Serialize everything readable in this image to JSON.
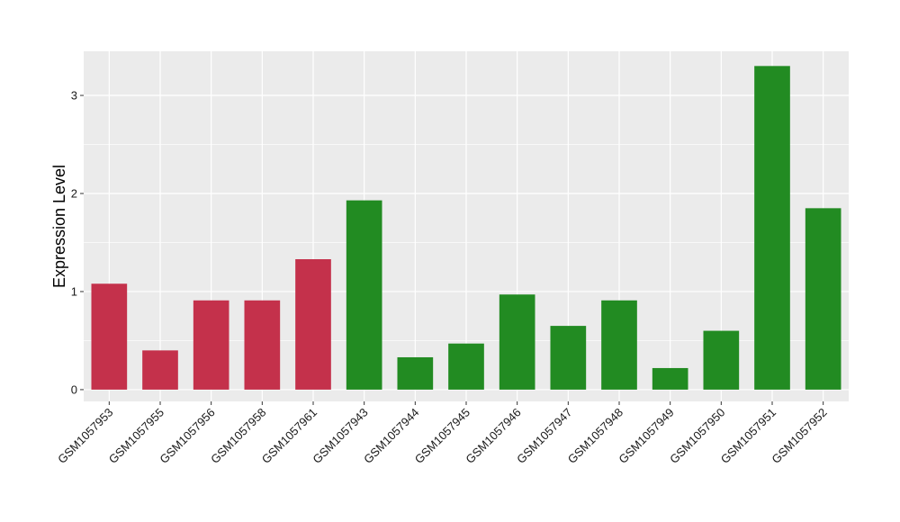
{
  "chart_data": {
    "type": "bar",
    "title": "",
    "xlabel": "",
    "ylabel": "Expression Level",
    "ylim": [
      -0.12,
      3.45
    ],
    "yticks": [
      0,
      1,
      2,
      3
    ],
    "grid": true,
    "legend": "none",
    "categories": [
      "GSM1057953",
      "GSM1057955",
      "GSM1057956",
      "GSM1057958",
      "GSM1057961",
      "GSM1057943",
      "GSM1057944",
      "GSM1057945",
      "GSM1057946",
      "GSM1057947",
      "GSM1057948",
      "GSM1057949",
      "GSM1057950",
      "GSM1057951",
      "GSM1057952"
    ],
    "values": [
      1.08,
      0.4,
      0.91,
      0.91,
      1.33,
      1.93,
      0.33,
      0.47,
      0.97,
      0.65,
      0.91,
      0.22,
      0.6,
      3.3,
      1.85
    ],
    "bar_colors": [
      "#C4314B",
      "#C4314B",
      "#C4314B",
      "#C4314B",
      "#C4314B",
      "#228B22",
      "#228B22",
      "#228B22",
      "#228B22",
      "#228B22",
      "#228B22",
      "#228B22",
      "#228B22",
      "#228B22",
      "#228B22"
    ],
    "panel_background": "#EBEBEB",
    "grid_color": "#FFFFFF"
  }
}
